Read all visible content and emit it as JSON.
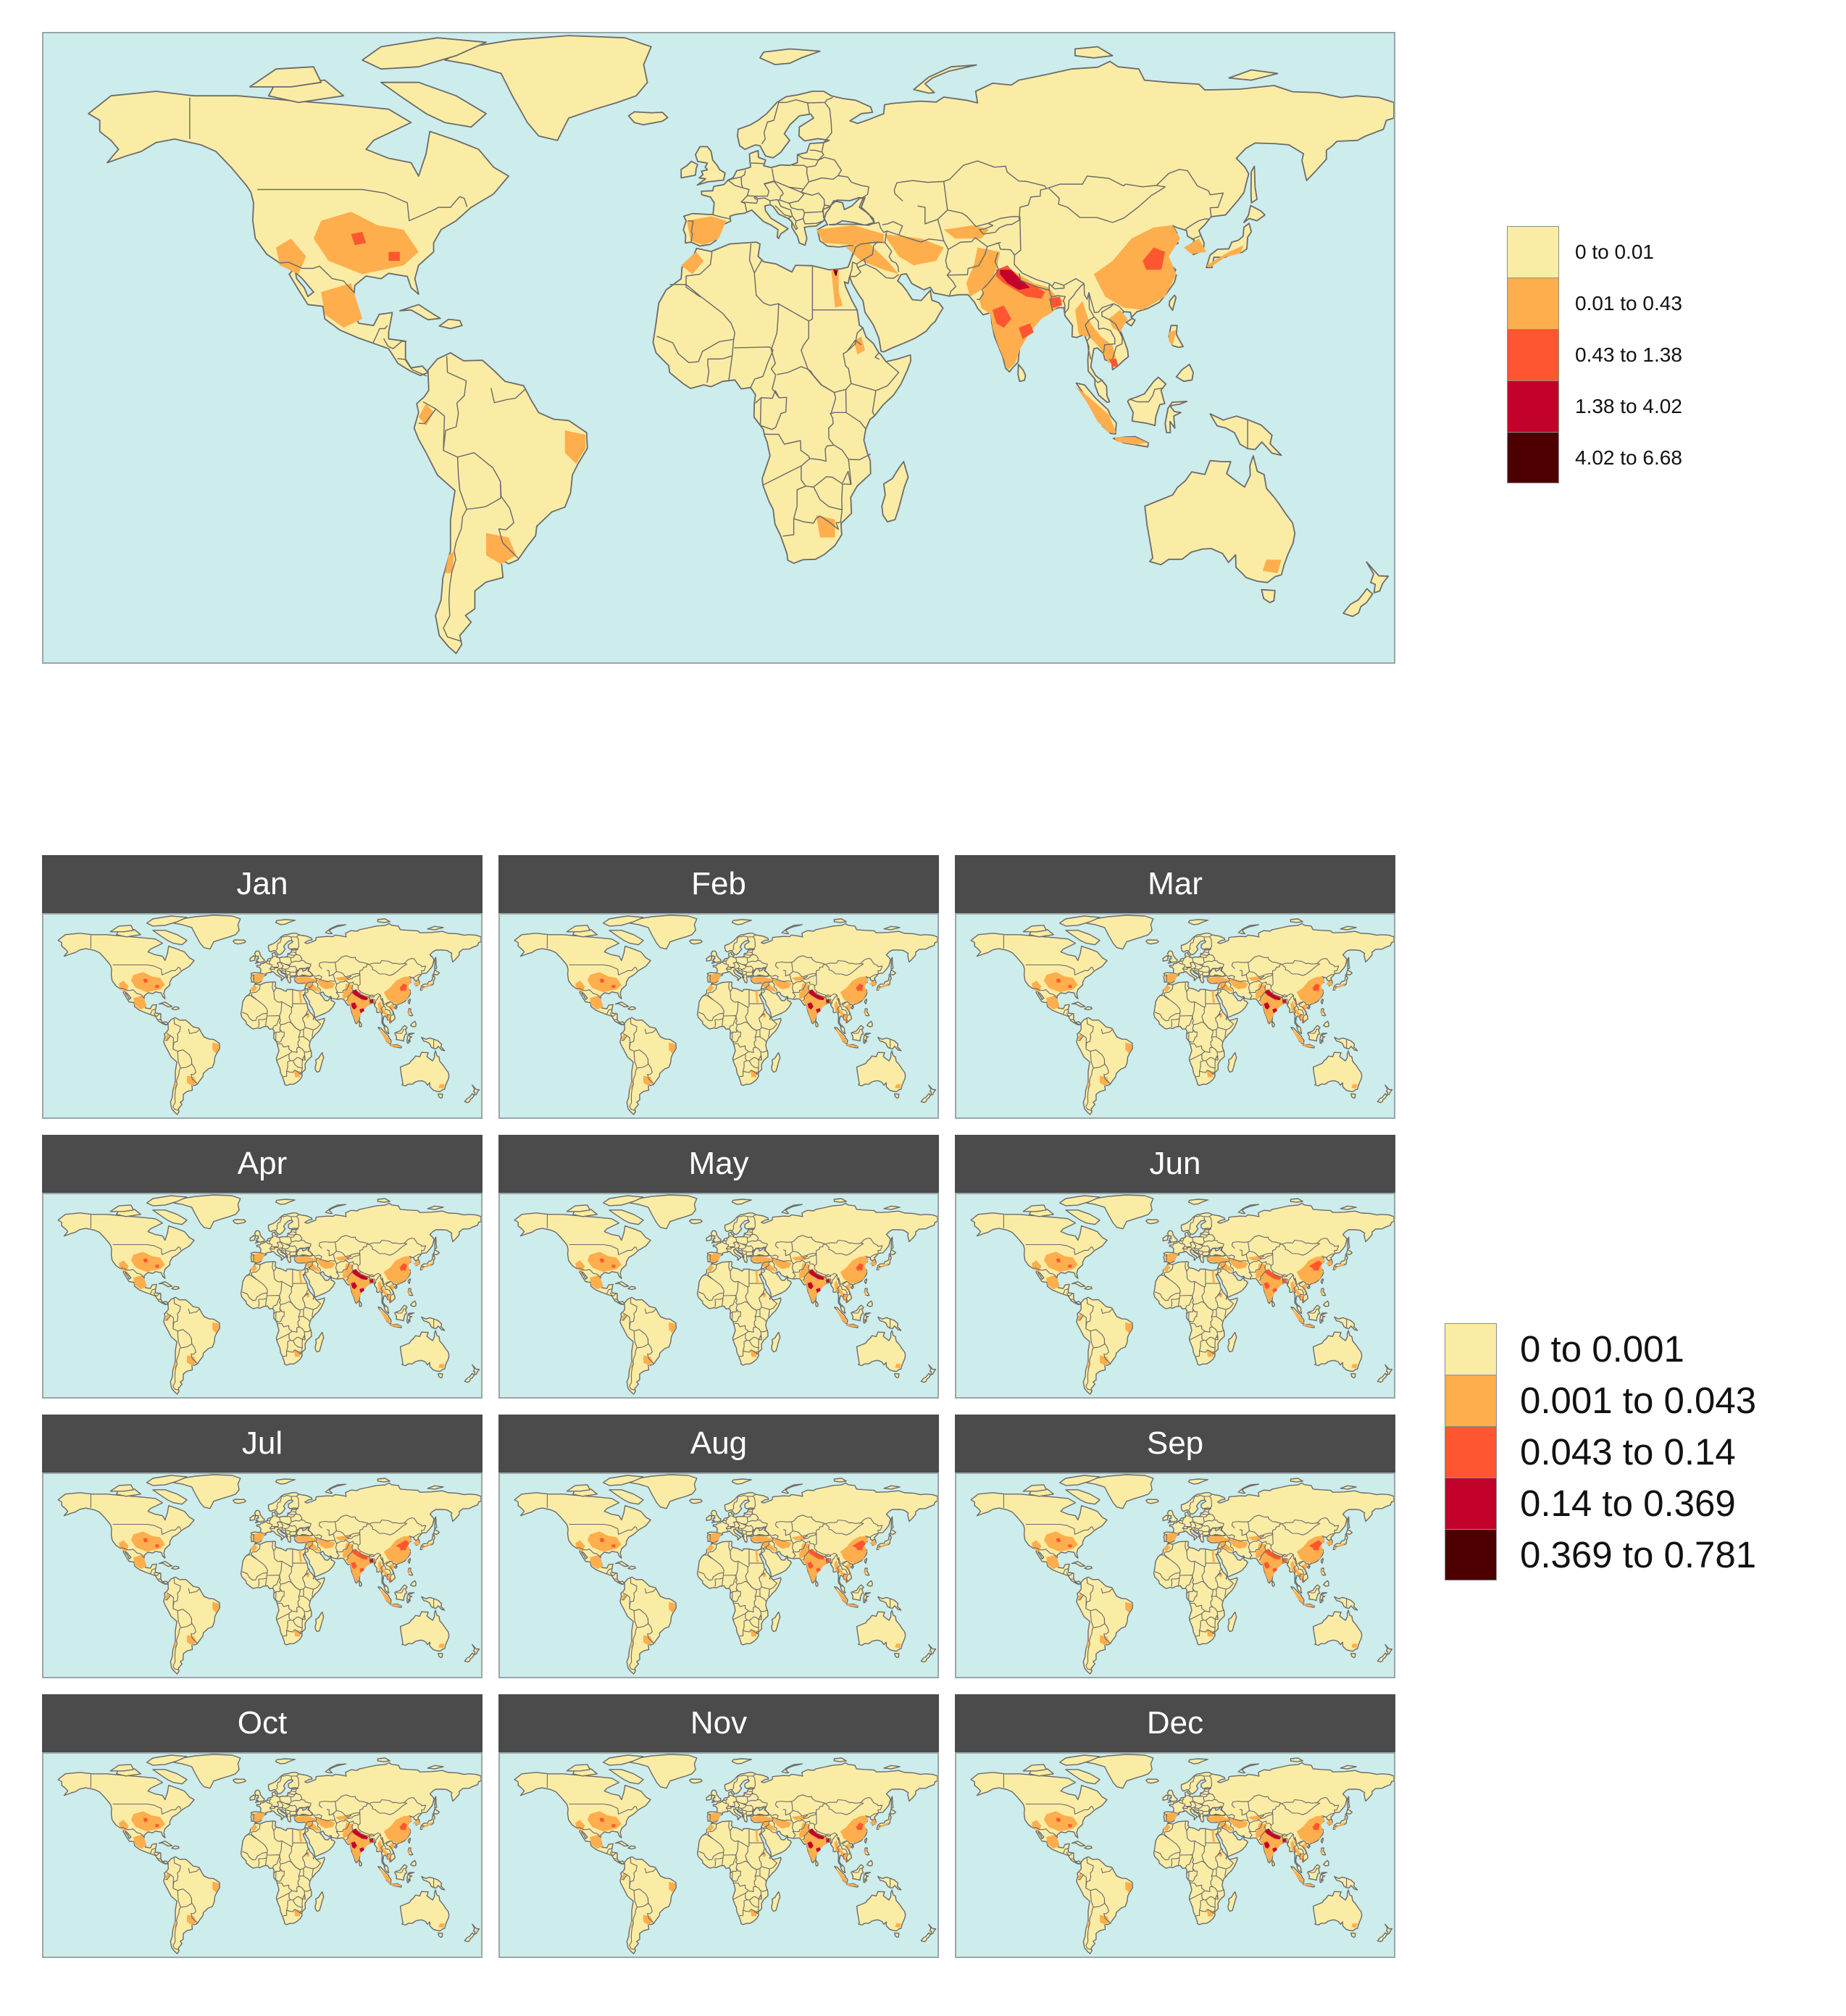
{
  "colors": {
    "ocean": "#cdecec",
    "land": "#fbeca5",
    "border": "#6b6b6b",
    "strip_bg": "#4b4b4b",
    "classes": [
      "#fbeca5",
      "#feae4c",
      "#fd5630",
      "#c2022a",
      "#4d0000"
    ]
  },
  "annual_map": {
    "legend": [
      {
        "label": "0 to 0.01",
        "color": "#fbeca5"
      },
      {
        "label": "0.01 to 0.43",
        "color": "#feae4c"
      },
      {
        "label": "0.43 to 1.38",
        "color": "#fd5630"
      },
      {
        "label": "1.38 to 4.02",
        "color": "#c2022a"
      },
      {
        "label": "4.02 to 6.68",
        "color": "#4d0000"
      }
    ]
  },
  "monthly_maps": {
    "panels": [
      "Jan",
      "Feb",
      "Mar",
      "Apr",
      "May",
      "Jun",
      "Jul",
      "Aug",
      "Sep",
      "Oct",
      "Nov",
      "Dec"
    ],
    "legend": [
      {
        "label": "0 to 0.001",
        "color": "#fbeca5"
      },
      {
        "label": "0.001 to 0.043",
        "color": "#feae4c"
      },
      {
        "label": "0.043 to 0.14",
        "color": "#fd5630"
      },
      {
        "label": "0.14 to 0.369",
        "color": "#c2022a"
      },
      {
        "label": "0.369 to 0.781",
        "color": "#4d0000"
      }
    ]
  }
}
